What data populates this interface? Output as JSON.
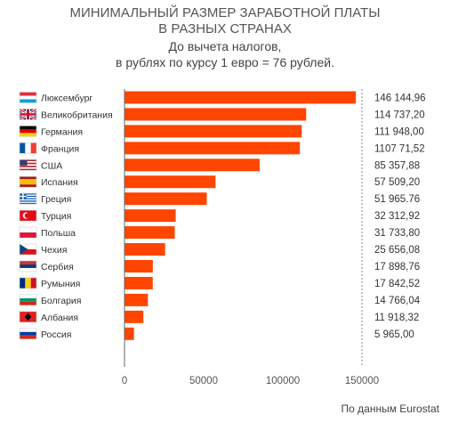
{
  "header": {
    "title_line1": "МИНИМАЛЬНЫЙ РАЗМЕР ЗАРАБОТНОЙ ПЛАТЫ",
    "title_line2": "В РАЗНЫХ СТРАНАХ",
    "subtitle_line1": "До вычета налогов,",
    "subtitle_line2": "в рублях по курсу 1 евро = 76 рублей."
  },
  "source": "По данным Eurostat",
  "colors": {
    "bar": "#ff4500",
    "text": "#333333",
    "axis": "#666666",
    "grid": "#888888"
  },
  "chart_data": {
    "type": "bar",
    "orientation": "horizontal",
    "categories": [
      "Люксембург",
      "Великобритания",
      "Германия",
      "Франция",
      "США",
      "Испания",
      "Греция",
      "Турция",
      "Польша",
      "Чехия",
      "Сербия",
      "Румыния",
      "Болгария",
      "Албания",
      "Россия"
    ],
    "values": [
      146144.96,
      114737.2,
      111948.0,
      110771.52,
      85357.88,
      57509.2,
      51965.76,
      32312.92,
      31733.8,
      25656.08,
      17898.76,
      17842.52,
      14766.04,
      11918.32,
      5965.0
    ],
    "value_labels": [
      "146 144,96",
      "114 737,20",
      "111 948,00",
      "1107 71,52",
      "85 357,88",
      "57 509,20",
      "51 965.76",
      "32 312,92",
      "31 733,80",
      "25 656,08",
      "17 898,76",
      "17 842,52",
      "14 766,04",
      "11 918,32",
      "5 965,00"
    ],
    "flags": [
      "flag-luxembourg-icon",
      "flag-uk-icon",
      "flag-germany-icon",
      "flag-france-icon",
      "flag-usa-icon",
      "flag-spain-icon",
      "flag-greece-icon",
      "flag-turkey-icon",
      "flag-poland-icon",
      "flag-czechia-icon",
      "flag-serbia-icon",
      "flag-romania-icon",
      "flag-bulgaria-icon",
      "flag-albania-icon",
      "flag-russia-icon"
    ],
    "xticks": [
      0,
      50000,
      100000,
      150000
    ],
    "xtick_labels": [
      "0",
      "50000",
      "100000",
      "150000"
    ],
    "xlim": [
      0,
      150000
    ],
    "grid": false,
    "reference_line": 150000
  }
}
